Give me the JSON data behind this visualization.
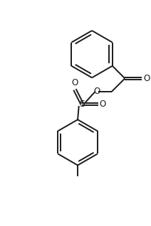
{
  "bg_color": "#ffffff",
  "line_color": "#1a1a1a",
  "line_width": 1.4,
  "figsize": [
    2.12,
    3.18
  ],
  "dpi": 100,
  "xlim": [
    0,
    10
  ],
  "ylim": [
    0,
    15
  ]
}
